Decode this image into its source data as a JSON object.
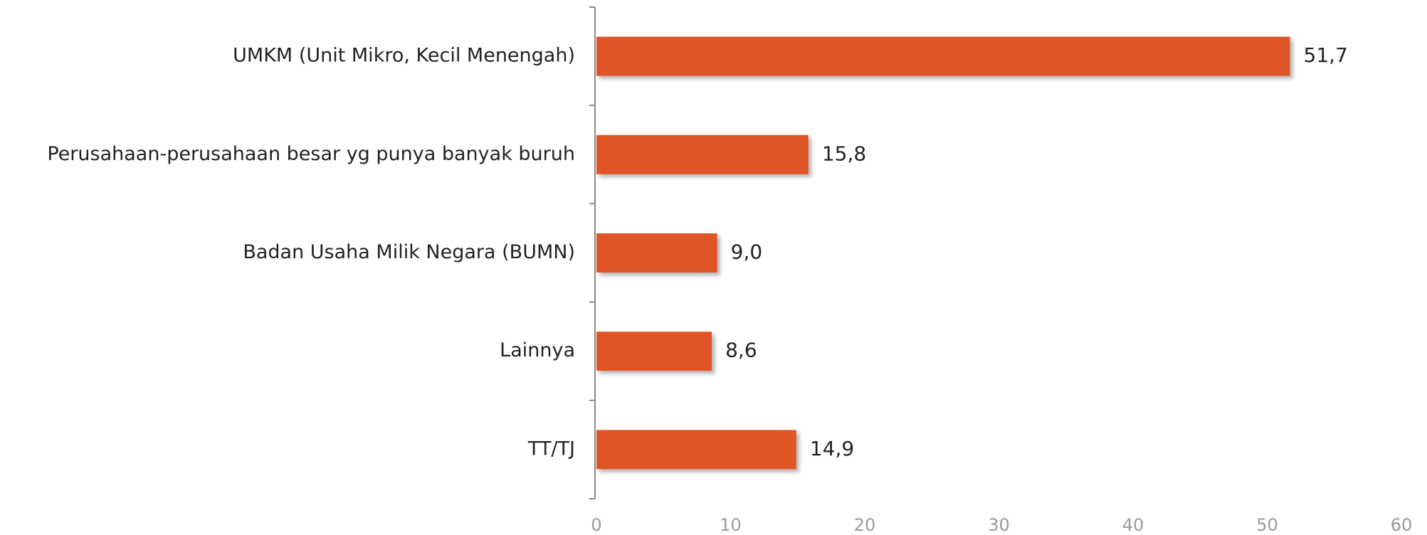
{
  "chart_data": {
    "type": "bar",
    "orientation": "horizontal",
    "categories": [
      "UMKM (Unit Mikro, Kecil Menengah)",
      "Perusahaan-perusahaan besar yg punya banyak buruh",
      "Badan Usaha Milik Negara (BUMN)",
      "Lainnya",
      "TT/TJ"
    ],
    "values": [
      51.7,
      15.8,
      9.0,
      8.6,
      14.9
    ],
    "value_labels": [
      "51,7",
      "15,8",
      "9,0",
      "8,6",
      "14,9"
    ],
    "color": "#e05528",
    "xlim": [
      0,
      60
    ],
    "xticks": [
      0,
      10,
      20,
      30,
      40,
      50,
      60
    ],
    "grid": false
  }
}
